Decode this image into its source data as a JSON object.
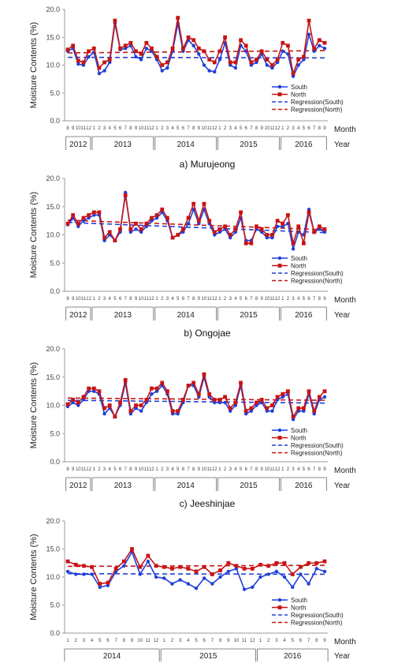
{
  "colors": {
    "south": "#1f3fd8",
    "north": "#c81414",
    "axis": "#999999"
  },
  "chart_data": [
    {
      "type": "line",
      "caption": "a)  Murujeong",
      "ylabel": "Moisture Contents (%)",
      "ylim": [
        0,
        20
      ],
      "yticks": [
        "0.0",
        "5.0",
        "10.0",
        "15.0",
        "20.0"
      ],
      "month_word": "Month",
      "year_word": "Year",
      "x": [
        "8",
        "9",
        "10",
        "11",
        "12",
        "1",
        "2",
        "3",
        "4",
        "5",
        "6",
        "7",
        "8",
        "9",
        "10",
        "11",
        "12",
        "1",
        "2",
        "3",
        "4",
        "5",
        "6",
        "7",
        "8",
        "9",
        "10",
        "11",
        "12",
        "1",
        "2",
        "3",
        "4",
        "5",
        "6",
        "7",
        "8",
        "9",
        "10",
        "11",
        "12",
        "1",
        "2",
        "3",
        "4",
        "5",
        "6",
        "7",
        "8",
        "9"
      ],
      "years": [
        {
          "label": "2012",
          "from": 0,
          "to": 4
        },
        {
          "label": "2013",
          "from": 5,
          "to": 16
        },
        {
          "label": "2014",
          "from": 17,
          "to": 28
        },
        {
          "label": "2015",
          "from": 29,
          "to": 40
        },
        {
          "label": "2016",
          "from": 41,
          "to": 49
        }
      ],
      "legend": [
        "South",
        "North",
        "Regression(South)",
        "Regression(North)"
      ],
      "series": [
        {
          "name": "South",
          "values": [
            12.5,
            13.0,
            10.2,
            10.0,
            11.5,
            12.3,
            8.5,
            9.0,
            10.5,
            17.5,
            12.8,
            13.0,
            13.5,
            11.5,
            11.0,
            13.0,
            12.5,
            11.0,
            9.0,
            9.5,
            12.5,
            17.5,
            12.5,
            14.5,
            13.5,
            12.0,
            10.0,
            9.0,
            8.8,
            11.0,
            14.0,
            10.0,
            9.5,
            13.5,
            12.5,
            10.0,
            10.5,
            12.0,
            10.0,
            9.5,
            10.5,
            12.5,
            12.0,
            8.0,
            10.0,
            11.0,
            15.5,
            12.5,
            13.5,
            13.0
          ]
        },
        {
          "name": "North",
          "values": [
            12.8,
            13.5,
            10.8,
            10.5,
            12.5,
            13.0,
            9.5,
            10.5,
            11.0,
            18.0,
            13.0,
            13.5,
            14.0,
            12.5,
            12.0,
            14.0,
            13.0,
            11.5,
            10.0,
            10.5,
            13.0,
            18.5,
            13.0,
            15.0,
            14.5,
            13.0,
            12.5,
            11.0,
            10.5,
            12.5,
            15.0,
            10.5,
            10.5,
            14.5,
            13.5,
            10.5,
            11.0,
            12.5,
            11.0,
            10.0,
            11.0,
            14.0,
            13.5,
            8.5,
            11.0,
            11.5,
            18.0,
            13.0,
            14.5,
            14.0
          ]
        },
        {
          "name": "Regression(South)",
          "regression": [
            11.4,
            11.3
          ]
        },
        {
          "name": "Regression(North)",
          "regression": [
            12.2,
            12.6
          ]
        }
      ]
    },
    {
      "type": "line",
      "caption": "b)  Ongojae",
      "ylabel": "Moisture Contents (%)",
      "ylim": [
        0,
        20
      ],
      "yticks": [
        "0.0",
        "5.0",
        "10.0",
        "15.0",
        "20.0"
      ],
      "month_word": "Month",
      "year_word": "Year",
      "x": [
        "8",
        "9",
        "10",
        "11",
        "12",
        "1",
        "2",
        "3",
        "4",
        "5",
        "6",
        "7",
        "8",
        "9",
        "10",
        "11",
        "12",
        "1",
        "2",
        "3",
        "4",
        "5",
        "6",
        "7",
        "8",
        "9",
        "10",
        "11",
        "12",
        "1",
        "2",
        "3",
        "4",
        "5",
        "6",
        "7",
        "8",
        "9",
        "10",
        "11",
        "12",
        "1",
        "2",
        "3",
        "4",
        "5",
        "6",
        "7",
        "8",
        "9"
      ],
      "years": [
        {
          "label": "2012",
          "from": 0,
          "to": 4
        },
        {
          "label": "2013",
          "from": 5,
          "to": 16
        },
        {
          "label": "2014",
          "from": 17,
          "to": 28
        },
        {
          "label": "2015",
          "from": 29,
          "to": 40
        },
        {
          "label": "2016",
          "from": 41,
          "to": 49
        }
      ],
      "legend": [
        "South",
        "North",
        "Regression(South)",
        "Regression(North)"
      ],
      "series": [
        {
          "name": "South",
          "values": [
            11.8,
            13.0,
            11.5,
            12.5,
            13.0,
            13.5,
            13.5,
            9.0,
            10.0,
            9.0,
            10.5,
            17.5,
            10.5,
            11.0,
            10.5,
            11.5,
            12.5,
            13.0,
            14.0,
            12.5,
            9.5,
            10.0,
            10.5,
            12.0,
            14.5,
            12.0,
            14.5,
            12.0,
            10.0,
            10.5,
            11.0,
            9.5,
            10.5,
            13.0,
            9.0,
            9.0,
            11.0,
            10.5,
            9.5,
            9.5,
            11.5,
            11.5,
            12.0,
            7.5,
            10.5,
            10.0,
            14.5,
            10.5,
            11.0,
            10.5
          ]
        },
        {
          "name": "North",
          "values": [
            12.0,
            13.5,
            12.0,
            13.0,
            13.5,
            14.0,
            14.0,
            9.5,
            10.5,
            9.0,
            11.0,
            17.0,
            11.0,
            12.0,
            11.0,
            12.0,
            13.0,
            13.5,
            14.5,
            13.0,
            9.5,
            10.0,
            11.0,
            13.0,
            15.5,
            12.5,
            15.5,
            12.5,
            10.5,
            11.0,
            11.5,
            10.0,
            11.0,
            14.0,
            8.5,
            8.5,
            11.5,
            11.0,
            10.0,
            10.0,
            12.5,
            12.0,
            13.5,
            8.5,
            11.5,
            8.5,
            14.0,
            10.5,
            11.5,
            11.0
          ]
        },
        {
          "name": "Regression(South)",
          "regression": [
            12.2,
            10.4
          ]
        },
        {
          "name": "Regression(North)",
          "regression": [
            12.6,
            10.9
          ]
        }
      ]
    },
    {
      "type": "line",
      "caption": "c)  Jeeshinjae",
      "ylabel": "Moisture Contents (%)",
      "ylim": [
        0,
        20
      ],
      "yticks": [
        "0.0",
        "5.0",
        "10.0",
        "15.0",
        "20.0"
      ],
      "month_word": "Month",
      "year_word": "Year",
      "x": [
        "8",
        "9",
        "10",
        "11",
        "12",
        "1",
        "2",
        "3",
        "4",
        "5",
        "6",
        "7",
        "8",
        "9",
        "10",
        "11",
        "12",
        "1",
        "2",
        "3",
        "4",
        "5",
        "6",
        "7",
        "8",
        "9",
        "10",
        "11",
        "12",
        "1",
        "2",
        "3",
        "4",
        "5",
        "6",
        "7",
        "8",
        "9",
        "10",
        "11",
        "12",
        "1",
        "2",
        "3",
        "4",
        "5",
        "6",
        "7",
        "8",
        "9"
      ],
      "years": [
        {
          "label": "2012",
          "from": 0,
          "to": 4
        },
        {
          "label": "2013",
          "from": 5,
          "to": 16
        },
        {
          "label": "2014",
          "from": 17,
          "to": 28
        },
        {
          "label": "2015",
          "from": 29,
          "to": 40
        },
        {
          "label": "2016",
          "from": 41,
          "to": 49
        }
      ],
      "legend": [
        "South",
        "North",
        "Regression(South)",
        "Regression(North)"
      ],
      "series": [
        {
          "name": "South",
          "values": [
            9.8,
            10.5,
            10.0,
            11.0,
            12.5,
            12.5,
            12.0,
            8.5,
            9.5,
            8.0,
            10.0,
            14.0,
            8.5,
            9.5,
            9.0,
            10.5,
            12.0,
            12.5,
            13.5,
            12.0,
            8.5,
            8.5,
            10.5,
            13.5,
            13.5,
            11.5,
            15.0,
            11.5,
            10.5,
            10.5,
            10.5,
            9.0,
            10.0,
            13.5,
            8.5,
            9.0,
            10.0,
            10.5,
            9.0,
            9.0,
            11.0,
            11.5,
            12.0,
            7.5,
            9.0,
            9.0,
            12.0,
            8.5,
            11.0,
            11.5
          ]
        },
        {
          "name": "North",
          "values": [
            10.2,
            11.0,
            10.5,
            11.5,
            13.0,
            13.0,
            12.5,
            9.5,
            10.0,
            8.0,
            10.5,
            14.5,
            9.0,
            10.0,
            10.0,
            11.0,
            13.0,
            13.0,
            14.0,
            12.5,
            9.0,
            9.0,
            11.0,
            13.5,
            14.0,
            12.0,
            15.5,
            12.0,
            11.0,
            11.0,
            11.5,
            9.5,
            10.5,
            14.0,
            9.0,
            9.5,
            10.5,
            11.0,
            9.5,
            10.0,
            11.5,
            12.0,
            12.5,
            8.0,
            9.5,
            9.5,
            12.5,
            9.0,
            11.5,
            12.5
          ]
        },
        {
          "name": "Regression(South)",
          "regression": [
            10.9,
            10.4
          ]
        },
        {
          "name": "Regression(North)",
          "regression": [
            11.3,
            10.9
          ]
        }
      ]
    },
    {
      "type": "line",
      "caption": "",
      "ylabel": "Moisture Contents (%)",
      "ylim": [
        0,
        20
      ],
      "yticks": [
        "0.0",
        "5.0",
        "10.0",
        "15.0",
        "20.0"
      ],
      "month_word": "Month",
      "year_word": "Year",
      "x": [
        "1",
        "2",
        "3",
        "4",
        "5",
        "6",
        "7",
        "8",
        "9",
        "10",
        "11",
        "12",
        "1",
        "2",
        "3",
        "4",
        "5",
        "6",
        "7",
        "8",
        "9",
        "10",
        "11",
        "12",
        "1",
        "2",
        "3",
        "4",
        "5",
        "6",
        "7",
        "8",
        "9"
      ],
      "years": [
        {
          "label": "2014",
          "from": 0,
          "to": 11
        },
        {
          "label": "2015",
          "from": 12,
          "to": 23
        },
        {
          "label": "2016",
          "from": 24,
          "to": 32
        }
      ],
      "legend": [
        "South",
        "North",
        "Regression(South)",
        "Regression(North)"
      ],
      "series": [
        {
          "name": "South",
          "values": [
            11.0,
            10.5,
            10.5,
            10.5,
            8.2,
            8.5,
            11.0,
            12.0,
            14.5,
            10.5,
            12.8,
            10.0,
            9.8,
            8.8,
            9.5,
            8.8,
            8.0,
            9.8,
            8.8,
            10.0,
            11.0,
            11.5,
            7.8,
            8.2,
            10.0,
            10.5,
            11.0,
            10.0,
            8.2,
            10.5,
            8.8,
            11.5,
            11.0
          ]
        },
        {
          "name": "North",
          "values": [
            12.8,
            12.2,
            12.0,
            11.8,
            8.8,
            9.0,
            11.5,
            12.8,
            15.0,
            11.8,
            13.8,
            12.0,
            11.8,
            11.5,
            11.8,
            11.5,
            11.0,
            11.8,
            10.5,
            11.2,
            12.5,
            12.0,
            11.5,
            11.5,
            12.2,
            12.0,
            12.5,
            12.5,
            10.5,
            11.8,
            12.5,
            12.5,
            12.8
          ]
        },
        {
          "name": "Regression(South)",
          "regression": [
            10.6,
            10.5
          ]
        },
        {
          "name": "Regression(North)",
          "regression": [
            11.9,
            12.1
          ]
        }
      ]
    }
  ]
}
